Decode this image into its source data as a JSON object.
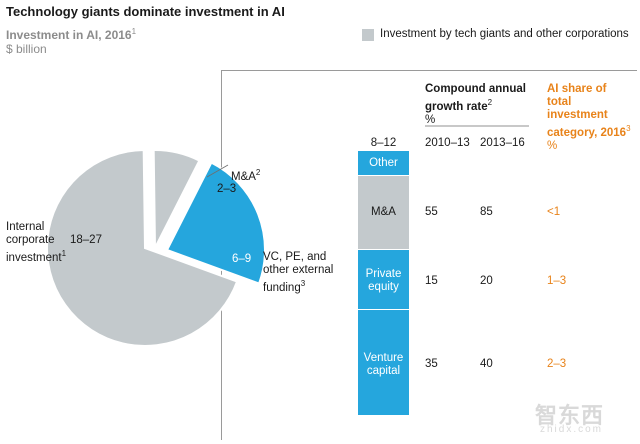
{
  "title": "Technology giants dominate investment in AI",
  "subtitle": "Investment in AI, 2016",
  "subtitle_sup": "1",
  "unit": "$ billion",
  "legend": "Investment by tech giants and other corporations",
  "colors": {
    "gray": "#c3c9cc",
    "blue": "#25a6dd",
    "orange": "#e8831a"
  },
  "chart_data": [
    {
      "type": "pie",
      "title": "Investment in AI, 2016",
      "unit": "$ billion",
      "slices": [
        {
          "label": "Internal corporate investment",
          "sup": "1",
          "value_label": "18–27",
          "midpoint": 22.5
        },
        {
          "label": "M&A",
          "sup": "2",
          "value_label": "2–3",
          "midpoint": 2.5
        },
        {
          "label": "VC, PE, and other external funding",
          "sup": "3",
          "value_label": "6–9",
          "midpoint": 7.5
        }
      ]
    },
    {
      "type": "bar",
      "title": "External investment breakdown",
      "total_label": "8–12",
      "categories": [
        "Other",
        "M&A",
        "Private equity",
        "Venture capital"
      ],
      "relative_values": [
        0.1,
        0.3,
        0.24,
        0.36
      ]
    },
    {
      "type": "table",
      "columns": [
        "2010–13",
        "2013–16",
        "AI share of total investment category, 2016"
      ],
      "rows": [
        {
          "category": "M&A",
          "cagr_2010_13": "55",
          "cagr_2013_16": "85",
          "ai_share": "<1"
        },
        {
          "category": "Private equity",
          "cagr_2010_13": "15",
          "cagr_2013_16": "20",
          "ai_share": "1–3"
        },
        {
          "category": "Venture capital",
          "cagr_2010_13": "35",
          "cagr_2013_16": "40",
          "ai_share": "2–3"
        }
      ]
    }
  ],
  "pie_labels": {
    "internal_lines": [
      "Internal",
      "corporate",
      "investment"
    ],
    "internal_sup": "1",
    "internal_value": "18–27",
    "ma_name": "M&A",
    "ma_sup": "2",
    "ma_value": "2–3",
    "vc_lines": [
      "VC, PE, and",
      "other external",
      "funding"
    ],
    "vc_sup": "3",
    "vc_value": "6–9"
  },
  "bar_labels": {
    "total": "8–12",
    "other": "Other",
    "ma": "M&A",
    "pe_lines": [
      "Private",
      "equity"
    ],
    "vc_lines": [
      "Venture",
      "capital"
    ]
  },
  "table": {
    "cagr_header_lines": [
      "Compound annual",
      "growth rate"
    ],
    "cagr_header_sup": "2",
    "cagr_unit": "%",
    "share_header_lines": [
      "AI share of",
      "total",
      "investment",
      "category, 2016"
    ],
    "share_header_sup": "3",
    "share_unit": "%",
    "col1": "2010–13",
    "col2": "2013–16",
    "rows": [
      {
        "c1": "55",
        "c2": "85",
        "share": "<1"
      },
      {
        "c1": "15",
        "c2": "20",
        "share": "1–3"
      },
      {
        "c1": "35",
        "c2": "40",
        "share": "2–3"
      }
    ]
  },
  "watermark": "智东西",
  "watermark_sub": "zhidx.com"
}
